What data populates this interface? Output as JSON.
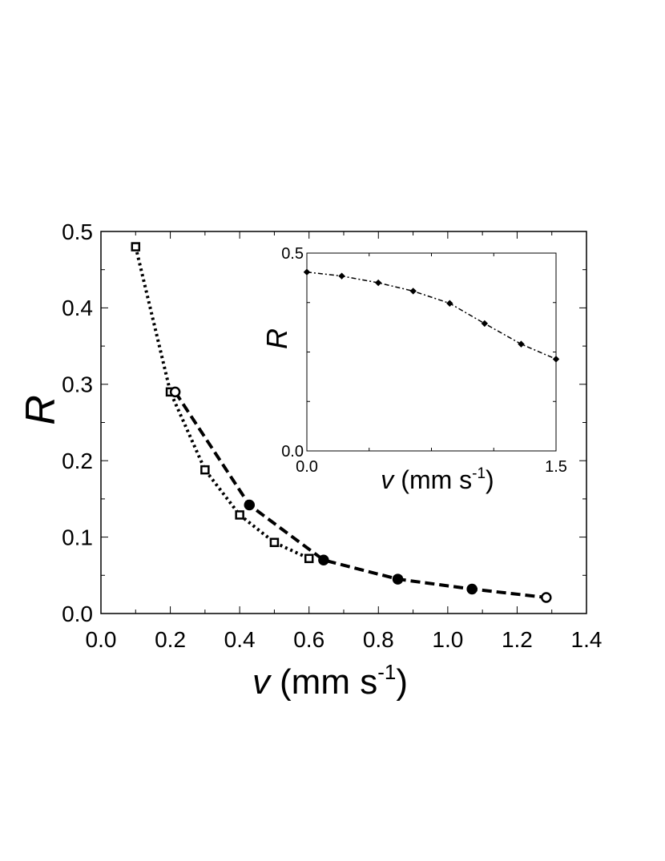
{
  "chart_data": [
    {
      "type": "line",
      "xlabel_var": "v",
      "xlabel_units": "(mm s",
      "xlabel_sup": "-1",
      "xlabel_close": ")",
      "ylabel": "R",
      "xlim": [
        0.0,
        1.4
      ],
      "ylim": [
        0.0,
        0.5
      ],
      "xticks": [
        "0.0",
        "0.2",
        "0.4",
        "0.6",
        "0.8",
        "1.0",
        "1.2",
        "1.4"
      ],
      "yticks": [
        "0.0",
        "0.1",
        "0.2",
        "0.3",
        "0.4",
        "0.5"
      ],
      "grid": false,
      "series": [
        {
          "marker": "square",
          "line_style": "dotted",
          "x": [
            0.1,
            0.2,
            0.3,
            0.4,
            0.5,
            0.6
          ],
          "y": [
            0.48,
            0.29,
            0.188,
            0.129,
            0.093,
            0.072
          ]
        },
        {
          "marker": "circle",
          "line_style": "dashed",
          "x": [
            0.214,
            0.428,
            0.642,
            0.856,
            1.07,
            1.284
          ],
          "y": [
            0.29,
            0.142,
            0.07,
            0.045,
            0.032,
            0.021
          ]
        }
      ]
    },
    {
      "type": "line",
      "inset": true,
      "xlabel_var": "v",
      "xlabel_units": "(mm s",
      "xlabel_sup": "-1",
      "xlabel_close": ")",
      "ylabel": "R",
      "xlim": [
        0.0,
        1.5
      ],
      "ylim": [
        0.0,
        0.5
      ],
      "xticks": [
        "0.0",
        "1.5"
      ],
      "yticks": [
        "0.0",
        "0.5"
      ],
      "grid": false,
      "series": [
        {
          "marker": "diamond",
          "line_style": "dash-dot",
          "x": [
            0.0,
            0.21,
            0.43,
            0.64,
            0.86,
            1.07,
            1.29,
            1.5
          ],
          "y": [
            0.452,
            0.442,
            0.425,
            0.404,
            0.373,
            0.322,
            0.27,
            0.232
          ]
        }
      ]
    }
  ]
}
